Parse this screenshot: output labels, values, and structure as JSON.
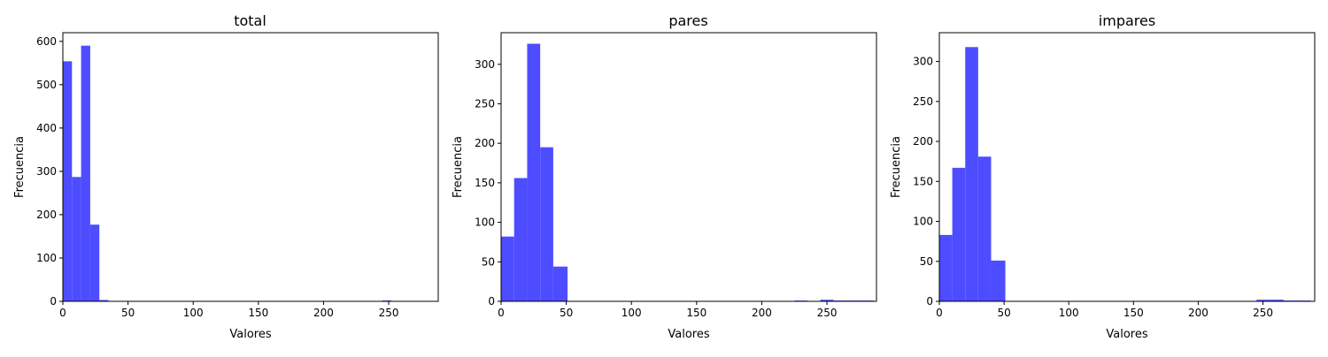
{
  "chart_data": [
    {
      "type": "bar",
      "title": "total",
      "xlabel": "Valores",
      "ylabel": "Frecuencia",
      "xlim": [
        0,
        288
      ],
      "ylim": [
        0,
        620
      ],
      "xticks": [
        "0",
        "50",
        "100",
        "150",
        "200",
        "250"
      ],
      "yticks": [
        "0",
        "100",
        "200",
        "300",
        "400",
        "500",
        "600"
      ],
      "bar_color": "#4d4dff",
      "bins": [
        {
          "x0": 0,
          "x1": 7,
          "value": 554
        },
        {
          "x0": 7,
          "x1": 14,
          "value": 287
        },
        {
          "x0": 14,
          "x1": 21,
          "value": 590
        },
        {
          "x0": 21,
          "x1": 28,
          "value": 177
        },
        {
          "x0": 28,
          "x1": 35,
          "value": 3
        },
        {
          "x0": 231,
          "x1": 238,
          "value": 1
        },
        {
          "x0": 245,
          "x1": 252,
          "value": 2
        },
        {
          "x0": 252,
          "x1": 259,
          "value": 1
        },
        {
          "x0": 259,
          "x1": 266,
          "value": 1
        },
        {
          "x0": 266,
          "x1": 273,
          "value": 1
        },
        {
          "x0": 280,
          "x1": 287,
          "value": 1
        }
      ]
    },
    {
      "type": "bar",
      "title": "pares",
      "xlabel": "Valores",
      "ylabel": "Frecuencia",
      "xlim": [
        0,
        288
      ],
      "ylim": [
        0,
        340
      ],
      "xticks": [
        "0",
        "50",
        "100",
        "150",
        "200",
        "250"
      ],
      "yticks": [
        "0",
        "50",
        "100",
        "150",
        "200",
        "250",
        "300"
      ],
      "bar_color": "#4d4dff",
      "bins": [
        {
          "x0": 0,
          "x1": 10,
          "value": 82
        },
        {
          "x0": 10,
          "x1": 20,
          "value": 156
        },
        {
          "x0": 20,
          "x1": 30,
          "value": 326
        },
        {
          "x0": 30,
          "x1": 40,
          "value": 195
        },
        {
          "x0": 40,
          "x1": 51,
          "value": 44
        },
        {
          "x0": 225,
          "x1": 235,
          "value": 1
        },
        {
          "x0": 245,
          "x1": 255,
          "value": 2
        },
        {
          "x0": 255,
          "x1": 266,
          "value": 1
        },
        {
          "x0": 266,
          "x1": 276,
          "value": 1
        },
        {
          "x0": 276,
          "x1": 286,
          "value": 1
        }
      ]
    },
    {
      "type": "bar",
      "title": "impares",
      "xlabel": "Valores",
      "ylabel": "Frecuencia",
      "xlim": [
        0,
        290
      ],
      "ylim": [
        0,
        336
      ],
      "xticks": [
        "0",
        "50",
        "100",
        "150",
        "200",
        "250"
      ],
      "yticks": [
        "0",
        "50",
        "100",
        "150",
        "200",
        "250",
        "300"
      ],
      "bar_color": "#4d4dff",
      "bins": [
        {
          "x0": 0,
          "x1": 10,
          "value": 83
        },
        {
          "x0": 10,
          "x1": 20,
          "value": 167
        },
        {
          "x0": 20,
          "x1": 30,
          "value": 318
        },
        {
          "x0": 30,
          "x1": 40,
          "value": 181
        },
        {
          "x0": 40,
          "x1": 51,
          "value": 51
        },
        {
          "x0": 245,
          "x1": 255,
          "value": 2
        },
        {
          "x0": 255,
          "x1": 266,
          "value": 2
        },
        {
          "x0": 266,
          "x1": 276,
          "value": 1
        },
        {
          "x0": 276,
          "x1": 287,
          "value": 1
        }
      ]
    }
  ]
}
